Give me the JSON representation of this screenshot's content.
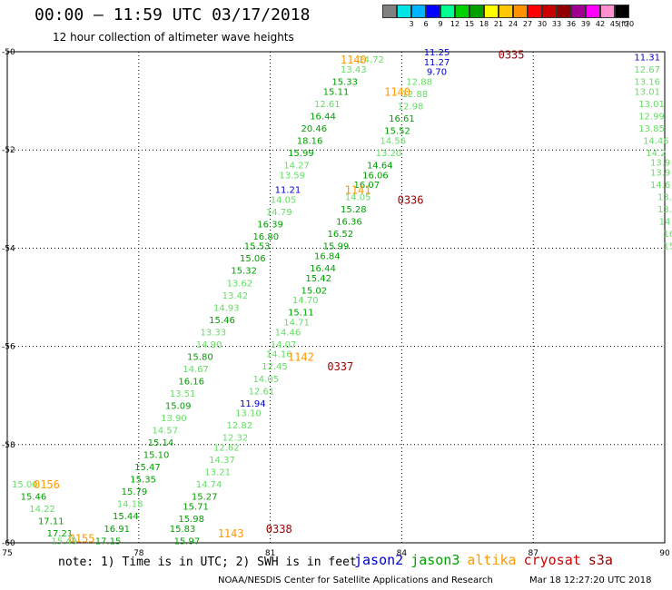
{
  "header": {
    "title": "00:00 – 11:59 UTC 03/17/2018",
    "subtitle": "12 hour collection of altimeter wave heights"
  },
  "legend": {
    "unit": "(ft)",
    "items": [
      {
        "label": "",
        "color": "#808080"
      },
      {
        "label": "3",
        "color": "#00e5e5"
      },
      {
        "label": "6",
        "color": "#00b4ff"
      },
      {
        "label": "9",
        "color": "#0000ff"
      },
      {
        "label": "12",
        "color": "#00ff90"
      },
      {
        "label": "15",
        "color": "#00d000"
      },
      {
        "label": "18",
        "color": "#00a000"
      },
      {
        "label": "21",
        "color": "#ffff00"
      },
      {
        "label": "24",
        "color": "#ffc800"
      },
      {
        "label": "27",
        "color": "#ff9000"
      },
      {
        "label": "30",
        "color": "#ff0000"
      },
      {
        "label": "33",
        "color": "#c80000"
      },
      {
        "label": "36",
        "color": "#900000"
      },
      {
        "label": "39",
        "color": "#a00090"
      },
      {
        "label": "42",
        "color": "#ff00ff"
      },
      {
        "label": "45",
        "color": "#ff90d0"
      },
      {
        "label": "70",
        "color": "#000000"
      }
    ]
  },
  "axes": {
    "x_ticks": [
      "75",
      "78",
      "81",
      "84",
      "87",
      "90"
    ],
    "y_ticks": [
      "-50",
      "-52",
      "-54",
      "-56",
      "-58",
      "-60"
    ],
    "x_range": [
      75,
      90
    ],
    "y_range": [
      -60,
      -50
    ],
    "grid": "dotted"
  },
  "colors": {
    "jason2": "#0000cc",
    "jason3": "#00a000",
    "jason3_light": "#66dd66",
    "altika": "#ff9900",
    "cryosat": "#990000",
    "s3a": "#990000"
  },
  "track_labels": [
    {
      "text": "0335",
      "lon": 86.5,
      "lat": -50.05,
      "sat": "cryosat"
    },
    {
      "text": "1140",
      "lon": 82.9,
      "lat": -50.15,
      "sat": "altika"
    },
    {
      "text": "1140",
      "lon": 83.9,
      "lat": -50.8,
      "sat": "altika"
    },
    {
      "text": "1141",
      "lon": 83.0,
      "lat": -52.8,
      "sat": "altika"
    },
    {
      "text": "0336",
      "lon": 84.2,
      "lat": -53.0,
      "sat": "cryosat"
    },
    {
      "text": "1142",
      "lon": 81.7,
      "lat": -56.2,
      "sat": "altika"
    },
    {
      "text": "0337",
      "lon": 82.6,
      "lat": -56.4,
      "sat": "cryosat"
    },
    {
      "text": "0156",
      "lon": 75.9,
      "lat": -58.8,
      "sat": "altika"
    },
    {
      "text": "0155",
      "lon": 76.7,
      "lat": -59.9,
      "sat": "altika"
    },
    {
      "text": "1143",
      "lon": 80.1,
      "lat": -59.8,
      "sat": "altika"
    },
    {
      "text": "0338",
      "lon": 81.2,
      "lat": -59.7,
      "sat": "cryosat"
    }
  ],
  "observations": [
    {
      "v": "14.72",
      "lon": 83.3,
      "lat": -50.15,
      "sat": "jason3_light"
    },
    {
      "v": "11.25",
      "lon": 84.8,
      "lat": -50.0,
      "sat": "jason2"
    },
    {
      "v": "11.27",
      "lon": 84.8,
      "lat": -50.2,
      "sat": "jason2"
    },
    {
      "v": "9.70",
      "lon": 84.8,
      "lat": -50.4,
      "sat": "jason2"
    },
    {
      "v": "13.43",
      "lon": 82.9,
      "lat": -50.35,
      "sat": "jason3_light"
    },
    {
      "v": "15.33",
      "lon": 82.7,
      "lat": -50.6,
      "sat": "jason3"
    },
    {
      "v": "12.88",
      "lon": 84.4,
      "lat": -50.6,
      "sat": "jason3_light"
    },
    {
      "v": "15.11",
      "lon": 82.5,
      "lat": -50.8,
      "sat": "jason3"
    },
    {
      "v": "12.88",
      "lon": 84.3,
      "lat": -50.85,
      "sat": "jason3_light"
    },
    {
      "v": "12.61",
      "lon": 82.3,
      "lat": -51.05,
      "sat": "jason3_light"
    },
    {
      "v": "12.98",
      "lon": 84.2,
      "lat": -51.1,
      "sat": "jason3_light"
    },
    {
      "v": "16.44",
      "lon": 82.2,
      "lat": -51.3,
      "sat": "jason3"
    },
    {
      "v": "16.61",
      "lon": 84.0,
      "lat": -51.35,
      "sat": "jason3"
    },
    {
      "v": "20.46",
      "lon": 82.0,
      "lat": -51.55,
      "sat": "jason3"
    },
    {
      "v": "15.52",
      "lon": 83.9,
      "lat": -51.6,
      "sat": "jason3"
    },
    {
      "v": "18.16",
      "lon": 81.9,
      "lat": -51.8,
      "sat": "jason3"
    },
    {
      "v": "14.56",
      "lon": 83.8,
      "lat": -51.8,
      "sat": "jason3_light"
    },
    {
      "v": "15.99",
      "lon": 81.7,
      "lat": -52.05,
      "sat": "jason3"
    },
    {
      "v": "13.20",
      "lon": 83.7,
      "lat": -52.05,
      "sat": "jason3_light"
    },
    {
      "v": "14.27",
      "lon": 81.6,
      "lat": -52.3,
      "sat": "jason3_light"
    },
    {
      "v": "14.64",
      "lon": 83.5,
      "lat": -52.3,
      "sat": "jason3"
    },
    {
      "v": "13.59",
      "lon": 81.5,
      "lat": -52.5,
      "sat": "jason3_light"
    },
    {
      "v": "16.06",
      "lon": 83.4,
      "lat": -52.5,
      "sat": "jason3"
    },
    {
      "v": "11.21",
      "lon": 81.4,
      "lat": -52.8,
      "sat": "jason2"
    },
    {
      "v": "16.07",
      "lon": 83.2,
      "lat": -52.7,
      "sat": "jason3"
    },
    {
      "v": "14.05",
      "lon": 81.3,
      "lat": -53.0,
      "sat": "jason3_light"
    },
    {
      "v": "14.05",
      "lon": 83.0,
      "lat": -52.95,
      "sat": "jason3_light"
    },
    {
      "v": "14.79",
      "lon": 81.2,
      "lat": -53.25,
      "sat": "jason3_light"
    },
    {
      "v": "15.28",
      "lon": 82.9,
      "lat": -53.2,
      "sat": "jason3"
    },
    {
      "v": "16.39",
      "lon": 81.0,
      "lat": -53.5,
      "sat": "jason3"
    },
    {
      "v": "16.36",
      "lon": 82.8,
      "lat": -53.45,
      "sat": "jason3"
    },
    {
      "v": "16.80",
      "lon": 80.9,
      "lat": -53.75,
      "sat": "jason3"
    },
    {
      "v": "16.52",
      "lon": 82.6,
      "lat": -53.7,
      "sat": "jason3"
    },
    {
      "v": "15.53",
      "lon": 80.7,
      "lat": -53.95,
      "sat": "jason3"
    },
    {
      "v": "15.99",
      "lon": 82.5,
      "lat": -53.95,
      "sat": "jason3"
    },
    {
      "v": "15.06",
      "lon": 80.6,
      "lat": -54.2,
      "sat": "jason3"
    },
    {
      "v": "16.84",
      "lon": 82.3,
      "lat": -54.15,
      "sat": "jason3"
    },
    {
      "v": "15.32",
      "lon": 80.4,
      "lat": -54.45,
      "sat": "jason3"
    },
    {
      "v": "16.44",
      "lon": 82.2,
      "lat": -54.4,
      "sat": "jason3"
    },
    {
      "v": "13.62",
      "lon": 80.3,
      "lat": -54.7,
      "sat": "jason3_light"
    },
    {
      "v": "15.42",
      "lon": 82.1,
      "lat": -54.6,
      "sat": "jason3"
    },
    {
      "v": "13.42",
      "lon": 80.2,
      "lat": -54.95,
      "sat": "jason3_light"
    },
    {
      "v": "15.02",
      "lon": 82.0,
      "lat": -54.85,
      "sat": "jason3"
    },
    {
      "v": "14.93",
      "lon": 80.0,
      "lat": -55.2,
      "sat": "jason3_light"
    },
    {
      "v": "14.70",
      "lon": 81.8,
      "lat": -55.05,
      "sat": "jason3_light"
    },
    {
      "v": "15.11",
      "lon": 81.7,
      "lat": -55.3,
      "sat": "jason3"
    },
    {
      "v": "15.46",
      "lon": 79.9,
      "lat": -55.45,
      "sat": "jason3"
    },
    {
      "v": "14.71",
      "lon": 81.6,
      "lat": -55.5,
      "sat": "jason3_light"
    },
    {
      "v": "13.33",
      "lon": 79.7,
      "lat": -55.7,
      "sat": "jason3_light"
    },
    {
      "v": "14.46",
      "lon": 81.4,
      "lat": -55.7,
      "sat": "jason3_light"
    },
    {
      "v": "14.90",
      "lon": 79.6,
      "lat": -55.95,
      "sat": "jason3_light"
    },
    {
      "v": "14.07",
      "lon": 81.3,
      "lat": -55.95,
      "sat": "jason3_light"
    },
    {
      "v": "15.80",
      "lon": 79.4,
      "lat": -56.2,
      "sat": "jason3"
    },
    {
      "v": "14.16",
      "lon": 81.2,
      "lat": -56.15,
      "sat": "jason3_light"
    },
    {
      "v": "14.67",
      "lon": 79.3,
      "lat": -56.45,
      "sat": "jason3_light"
    },
    {
      "v": "12.45",
      "lon": 81.1,
      "lat": -56.4,
      "sat": "jason3_light"
    },
    {
      "v": "16.16",
      "lon": 79.2,
      "lat": -56.7,
      "sat": "jason3"
    },
    {
      "v": "14.05",
      "lon": 80.9,
      "lat": -56.65,
      "sat": "jason3_light"
    },
    {
      "v": "13.51",
      "lon": 79.0,
      "lat": -56.95,
      "sat": "jason3_light"
    },
    {
      "v": "12.61",
      "lon": 80.8,
      "lat": -56.9,
      "sat": "jason3_light"
    },
    {
      "v": "15.09",
      "lon": 78.9,
      "lat": -57.2,
      "sat": "jason3"
    },
    {
      "v": "11.94",
      "lon": 80.6,
      "lat": -57.15,
      "sat": "jason2"
    },
    {
      "v": "13.90",
      "lon": 78.8,
      "lat": -57.45,
      "sat": "jason3_light"
    },
    {
      "v": "13.10",
      "lon": 80.5,
      "lat": -57.35,
      "sat": "jason3_light"
    },
    {
      "v": "14.57",
      "lon": 78.6,
      "lat": -57.7,
      "sat": "jason3_light"
    },
    {
      "v": "12.82",
      "lon": 80.3,
      "lat": -57.6,
      "sat": "jason3_light"
    },
    {
      "v": "15.14",
      "lon": 78.5,
      "lat": -57.95,
      "sat": "jason3"
    },
    {
      "v": "12.32",
      "lon": 80.2,
      "lat": -57.85,
      "sat": "jason3_light"
    },
    {
      "v": "15.10",
      "lon": 78.4,
      "lat": -58.2,
      "sat": "jason3"
    },
    {
      "v": "12.62",
      "lon": 80.0,
      "lat": -58.05,
      "sat": "jason3_light"
    },
    {
      "v": "15.47",
      "lon": 78.2,
      "lat": -58.45,
      "sat": "jason3"
    },
    {
      "v": "14.37",
      "lon": 79.9,
      "lat": -58.3,
      "sat": "jason3_light"
    },
    {
      "v": "15.35",
      "lon": 78.1,
      "lat": -58.7,
      "sat": "jason3"
    },
    {
      "v": "13.21",
      "lon": 79.8,
      "lat": -58.55,
      "sat": "jason3_light"
    },
    {
      "v": "15.79",
      "lon": 77.9,
      "lat": -58.95,
      "sat": "jason3"
    },
    {
      "v": "14.74",
      "lon": 79.6,
      "lat": -58.8,
      "sat": "jason3_light"
    },
    {
      "v": "14.18",
      "lon": 77.8,
      "lat": -59.2,
      "sat": "jason3_light"
    },
    {
      "v": "15.27",
      "lon": 79.5,
      "lat": -59.05,
      "sat": "jason3"
    },
    {
      "v": "15.44",
      "lon": 77.7,
      "lat": -59.45,
      "sat": "jason3"
    },
    {
      "v": "15.71",
      "lon": 79.3,
      "lat": -59.25,
      "sat": "jason3"
    },
    {
      "v": "16.91",
      "lon": 77.5,
      "lat": -59.7,
      "sat": "jason3"
    },
    {
      "v": "15.98",
      "lon": 79.2,
      "lat": -59.5,
      "sat": "jason3"
    },
    {
      "v": "17.15",
      "lon": 77.3,
      "lat": -59.95,
      "sat": "jason3"
    },
    {
      "v": "15.83",
      "lon": 79.0,
      "lat": -59.7,
      "sat": "jason3"
    },
    {
      "v": "15.97",
      "lon": 79.1,
      "lat": -59.95,
      "sat": "jason3"
    },
    {
      "v": "15.00",
      "lon": 75.4,
      "lat": -58.8,
      "sat": "jason3_light"
    },
    {
      "v": "15.46",
      "lon": 75.6,
      "lat": -59.05,
      "sat": "jason3"
    },
    {
      "v": "14.22",
      "lon": 75.8,
      "lat": -59.3,
      "sat": "jason3_light"
    },
    {
      "v": "17.11",
      "lon": 76.0,
      "lat": -59.55,
      "sat": "jason3"
    },
    {
      "v": "17.21",
      "lon": 76.2,
      "lat": -59.8,
      "sat": "jason3"
    },
    {
      "v": "15.49",
      "lon": 76.3,
      "lat": -59.95,
      "sat": "jason3_light"
    },
    {
      "v": "11.31",
      "lon": 89.6,
      "lat": -50.1,
      "sat": "jason2"
    },
    {
      "v": "12.67",
      "lon": 89.6,
      "lat": -50.35,
      "sat": "jason3_light"
    },
    {
      "v": "13.16",
      "lon": 89.6,
      "lat": -50.6,
      "sat": "jason3_light"
    },
    {
      "v": "13.01",
      "lon": 89.6,
      "lat": -50.8,
      "sat": "jason3_light"
    },
    {
      "v": "13.01",
      "lon": 89.7,
      "lat": -51.05,
      "sat": "jason3_light"
    },
    {
      "v": "12.99",
      "lon": 89.7,
      "lat": -51.3,
      "sat": "jason3_light"
    },
    {
      "v": "13.85",
      "lon": 89.7,
      "lat": -51.55,
      "sat": "jason3_light"
    },
    {
      "v": "14.46",
      "lon": 89.8,
      "lat": -51.8,
      "sat": "jason3_light"
    },
    {
      "v": "14.2",
      "lon": 89.8,
      "lat": -52.05,
      "sat": "jason3_light"
    },
    {
      "v": "13.9",
      "lon": 89.9,
      "lat": -52.25,
      "sat": "jason3_light"
    },
    {
      "v": "13.9",
      "lon": 89.9,
      "lat": -52.45,
      "sat": "jason3_light"
    },
    {
      "v": "14.6",
      "lon": 89.9,
      "lat": -52.7,
      "sat": "jason3_light"
    },
    {
      "v": "13.",
      "lon": 90.0,
      "lat": -52.95,
      "sat": "jason3_light"
    },
    {
      "v": "13.",
      "lon": 90.0,
      "lat": -53.2,
      "sat": "jason3_light"
    },
    {
      "v": "14",
      "lon": 90.0,
      "lat": -53.45,
      "sat": "jason3_light"
    },
    {
      "v": "16",
      "lon": 90.1,
      "lat": -53.7,
      "sat": "jason3_light"
    },
    {
      "v": "15",
      "lon": 90.1,
      "lat": -53.95,
      "sat": "jason3_light"
    }
  ],
  "footer": {
    "note": "note: 1) Time is in UTC; 2) SWH is in feet",
    "satellites": [
      {
        "name": "jason2",
        "color": "#0000cc"
      },
      {
        "name": "jason3",
        "color": "#00a000"
      },
      {
        "name": "altika",
        "color": "#ff9900"
      },
      {
        "name": "cryosat",
        "color": "#cc0000"
      },
      {
        "name": "s3a",
        "color": "#990000"
      }
    ],
    "credit": "NOAA/NESDIS Center for Satellite Applications and Research",
    "timestamp": "Mar 18 12:27:20 UTC 2018"
  }
}
